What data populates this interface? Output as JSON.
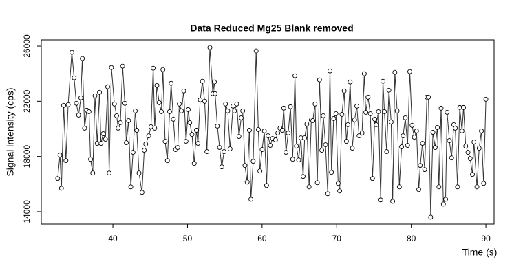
{
  "chart_data": {
    "type": "line",
    "title": "Data Reduced Mg25 Blank removed",
    "x_label": "Time (s)",
    "y_label": "Signal intensity (cps)",
    "x": [
      32.6,
      32.9,
      33.1,
      33.4,
      33.7,
      34.0,
      34.5,
      34.8,
      35.1,
      35.4,
      35.7,
      35.9,
      36.2,
      36.5,
      36.8,
      37.0,
      37.3,
      37.6,
      37.9,
      38.2,
      38.4,
      38.7,
      39.0,
      39.3,
      39.5,
      39.8,
      40.2,
      40.5,
      40.7,
      41.0,
      41.3,
      41.6,
      41.8,
      42.1,
      42.4,
      42.7,
      43.0,
      43.2,
      43.5,
      43.9,
      44.2,
      44.4,
      44.8,
      45.1,
      45.4,
      45.6,
      45.9,
      46.2,
      46.5,
      46.7,
      47.0,
      47.3,
      47.6,
      47.8,
      48.1,
      48.4,
      48.7,
      48.9,
      49.2,
      49.5,
      49.8,
      50.1,
      50.3,
      50.6,
      50.9,
      51.2,
      51.4,
      51.7,
      52.0,
      52.3,
      52.6,
      53.0,
      53.4,
      53.6,
      53.7,
      54.0,
      54.3,
      54.6,
      54.9,
      55.1,
      55.4,
      55.7,
      56.1,
      56.3,
      56.6,
      56.9,
      57.2,
      57.4,
      57.7,
      58.0,
      58.3,
      58.5,
      58.8,
      59.2,
      59.5,
      59.7,
      60.0,
      60.3,
      60.6,
      60.8,
      61.1,
      61.4,
      61.8,
      62.1,
      62.4,
      62.7,
      62.9,
      63.2,
      63.5,
      63.8,
      64.1,
      64.4,
      64.6,
      64.9,
      65.2,
      65.5,
      65.7,
      66.0,
      66.3,
      66.6,
      66.8,
      67.1,
      67.4,
      67.7,
      68.0,
      68.2,
      68.5,
      68.8,
      69.1,
      69.3,
      69.6,
      69.9,
      70.2,
      70.4,
      70.7,
      71.0,
      71.3,
      71.5,
      71.8,
      72.1,
      72.4,
      72.7,
      73.0,
      73.4,
      73.7,
      73.9,
      74.2,
      74.5,
      74.8,
      75.1,
      75.3,
      75.6,
      75.9,
      76.2,
      76.4,
      76.7,
      77.0,
      77.3,
      77.5,
      77.8,
      78.1,
      78.4,
      78.7,
      78.9,
      79.2,
      79.5,
      79.8,
      80.1,
      80.4,
      80.7,
      81.0,
      81.2,
      81.5,
      81.8,
      82.1,
      82.3,
      82.6,
      82.9,
      83.2,
      83.5,
      83.7,
      84.0,
      84.3,
      84.6,
      84.8,
      85.1,
      85.4,
      85.7,
      85.9,
      86.2,
      86.5,
      86.8,
      87.0,
      87.3,
      87.6,
      87.9,
      88.2,
      88.4,
      88.8,
      89.1,
      89.4,
      89.7,
      90.0
    ],
    "series": [
      {
        "color": "#333333",
        "values": [
          16400,
          18100,
          15700,
          21700,
          17700,
          21750,
          25550,
          23700,
          21850,
          21000,
          22250,
          25100,
          20050,
          21350,
          21250,
          17800,
          16800,
          22400,
          18950,
          22650,
          18950,
          19650,
          19250,
          23050,
          16800,
          24450,
          21800,
          20950,
          20050,
          20450,
          24550,
          21850,
          19000,
          20600,
          15800,
          18300,
          21300,
          19900,
          16800,
          15400,
          18450,
          18900,
          19500,
          20150,
          24400,
          20050,
          23150,
          21900,
          21250,
          24300,
          19100,
          17700,
          21250,
          23300,
          20700,
          18500,
          18650,
          21800,
          21300,
          22750,
          19100,
          21400,
          20450,
          19600,
          17500,
          19900,
          18950,
          22100,
          23450,
          22000,
          18350,
          25900,
          22550,
          23400,
          22550,
          20200,
          18650,
          17250,
          18350,
          21800,
          21300,
          18550,
          21650,
          21300,
          21800,
          19450,
          20800,
          21300,
          17350,
          16150,
          19900,
          14900,
          17650,
          25650,
          19950,
          16950,
          18500,
          19850,
          15900,
          19500,
          18800,
          19300,
          19200,
          19700,
          20050,
          19900,
          21500,
          18300,
          19700,
          21600,
          17800,
          23850,
          18750,
          17750,
          19350,
          16550,
          19350,
          20350,
          15800,
          20650,
          20600,
          21800,
          16100,
          23550,
          18450,
          20950,
          18850,
          15300,
          24200,
          16850,
          20750,
          21100,
          16050,
          15500,
          21050,
          22750,
          19100,
          20300,
          23400,
          18600,
          20650,
          21650,
          19500,
          19700,
          24000,
          21200,
          22300,
          21100,
          16400,
          20700,
          20300,
          21250,
          14850,
          23450,
          21250,
          18350,
          22800,
          20500,
          14750,
          24100,
          21300,
          15800,
          18700,
          19500,
          20800,
          18800,
          24150,
          20250,
          19400,
          19850,
          15600,
          17350,
          18950,
          17050,
          22300,
          22300,
          13600,
          19750,
          18650,
          20100,
          15800,
          21500,
          14550,
          14900,
          21200,
          19150,
          17900,
          20300,
          20050,
          15800,
          21550,
          19850,
          21550,
          18750,
          18300,
          17850,
          16700,
          19050,
          15800,
          18600,
          19850,
          16050,
          22150
        ]
      }
    ],
    "xlim": [
      30.4,
      91.1
    ],
    "ylim": [
      13100,
      26450
    ],
    "xticks": [
      40,
      50,
      60,
      70,
      80,
      90
    ],
    "yticks": [
      14000,
      18000,
      22000,
      26000
    ]
  }
}
